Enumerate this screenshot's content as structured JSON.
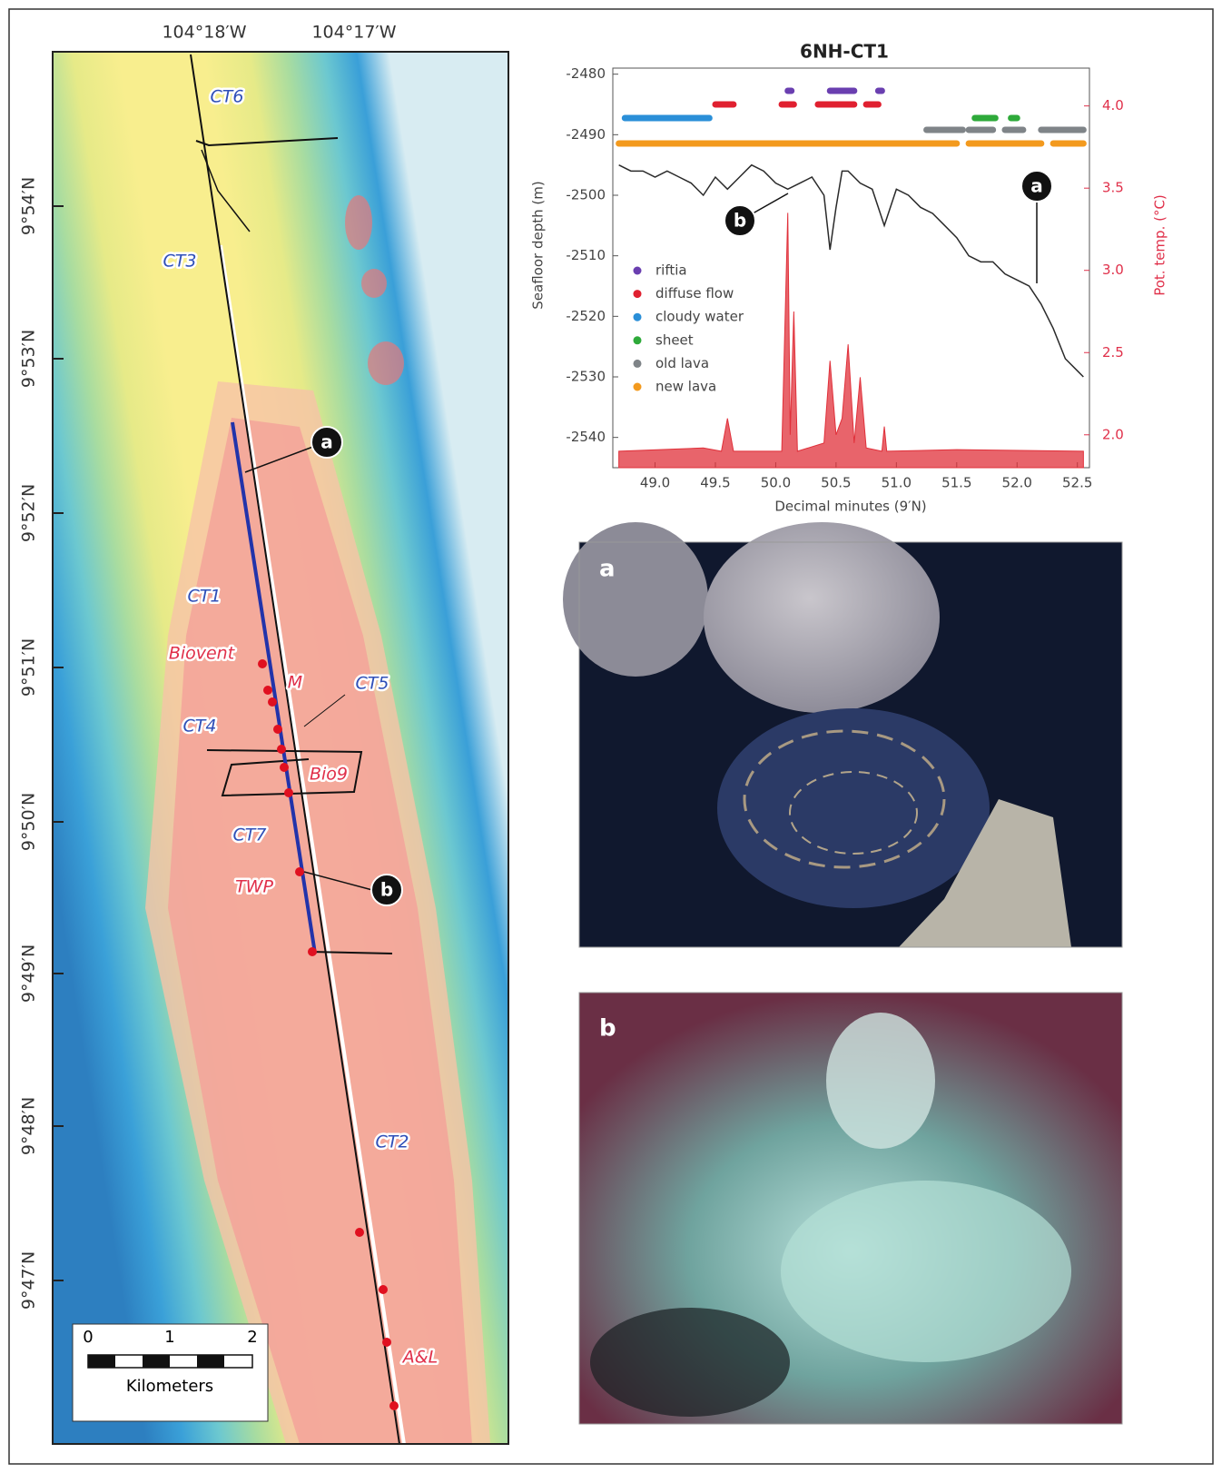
{
  "map": {
    "lon_labels": [
      "104°18′W",
      "104°17′W"
    ],
    "lat_labels": [
      "9°54′N",
      "9°53′N",
      "9°52′N",
      "9°51′N",
      "9°50′N",
      "9°49′N",
      "9°48′N",
      "9°47′N"
    ],
    "site_labels": [
      "CT6",
      "CT3",
      "CT1",
      "Biovent",
      "M",
      "CT5",
      "CT4",
      "Bio9",
      "CT7",
      "TWP",
      "CT2",
      "A&L"
    ],
    "callouts": [
      "a",
      "b"
    ],
    "scale": {
      "ticks": [
        "0",
        "1",
        "2"
      ],
      "unit": "Kilometers"
    }
  },
  "chart_data": {
    "type": "line",
    "title": "6NH-CT1",
    "x_label": "Decimal minutes (9′N)",
    "y_label": "Seafloor depth (m)",
    "y2_label": "Pot. temp. (°C)",
    "xlim": [
      48.65,
      52.6
    ],
    "xticks": [
      {
        "value": 49,
        "label": "49.0"
      },
      {
        "value": 49.5,
        "label": "49.5"
      },
      {
        "value": 50,
        "label": "50.0"
      },
      {
        "value": 50.5,
        "label": "50.5"
      },
      {
        "value": 51,
        "label": "51.0"
      },
      {
        "value": 51.5,
        "label": "51.5"
      },
      {
        "value": 52,
        "label": "52.0"
      },
      {
        "value": 52.5,
        "label": "52.5"
      }
    ],
    "ylim": [
      -2545,
      -2479
    ],
    "yticks": [
      -2480,
      -2490,
      -2500,
      -2510,
      -2520,
      -2530,
      -2540
    ],
    "y2lim": [
      1.8,
      4.23
    ],
    "y2ticks": [
      {
        "value": 2,
        "label": "2.0"
      },
      2.5,
      {
        "value": 3,
        "label": "3.0"
      },
      3.5,
      {
        "value": 4,
        "label": "4.0"
      }
    ],
    "series": [
      {
        "color": "#2a2a2a",
        "x": [
          48.7,
          48.8,
          48.9,
          49.0,
          49.1,
          49.2,
          49.3,
          49.4,
          49.5,
          49.6,
          49.7,
          49.8,
          49.9,
          50.0,
          50.1,
          50.2,
          50.3,
          50.4,
          50.45,
          50.5,
          50.55,
          50.6,
          50.7,
          50.8,
          50.9,
          51.0,
          51.1,
          51.2,
          51.3,
          51.4,
          51.5,
          51.6,
          51.7,
          51.8,
          51.9,
          52.0,
          52.1,
          52.2,
          52.3,
          52.4,
          52.5,
          52.55
        ],
        "values": [
          -2495,
          -2496,
          -2496,
          -2497,
          -2496,
          -2497,
          -2498,
          -2500,
          -2497,
          -2499,
          -2497,
          -2495,
          -2496,
          -2498,
          -2499,
          -2498,
          -2497,
          -2500,
          -2509,
          -2502,
          -2496,
          -2496,
          -2498,
          -2499,
          -2505,
          -2499,
          -2500,
          -2502,
          -2503,
          -2505,
          -2507,
          -2510,
          -2511,
          -2511,
          -2513,
          -2514,
          -2515,
          -2518,
          -2522,
          -2527,
          -2529,
          -2530
        ]
      },
      {
        "axis": "y2",
        "color": "#e0303a",
        "x": [
          48.7,
          49.4,
          49.55,
          49.6,
          49.65,
          50.05,
          50.1,
          50.12,
          50.15,
          50.18,
          50.4,
          50.45,
          50.5,
          50.55,
          50.6,
          50.65,
          50.7,
          50.75,
          50.88,
          50.9,
          50.92,
          51.5,
          52.55
        ],
        "values": [
          1.9,
          1.92,
          1.9,
          2.1,
          1.9,
          1.9,
          3.35,
          2.0,
          2.75,
          1.9,
          1.95,
          2.45,
          2.0,
          2.1,
          2.55,
          1.95,
          2.35,
          1.92,
          1.9,
          2.05,
          1.9,
          1.91,
          1.9
        ]
      }
    ],
    "habitats": [
      {
        "name": "riftia",
        "color": "#6a3fb0",
        "segments": [
          [
            50.1,
            50.13
          ],
          [
            50.45,
            50.65
          ],
          [
            50.85,
            50.88
          ]
        ]
      },
      {
        "name": "diffuse flow",
        "color": "#e02030",
        "segments": [
          [
            49.5,
            49.65
          ],
          [
            50.05,
            50.15
          ],
          [
            50.35,
            50.65
          ],
          [
            50.75,
            50.85
          ]
        ]
      },
      {
        "name": "cloudy water",
        "color": "#2a8fd8",
        "segments": [
          [
            48.75,
            49.45
          ]
        ]
      },
      {
        "name": "sheet",
        "color": "#2eaa3a",
        "segments": [
          [
            51.65,
            51.82
          ],
          [
            51.95,
            52.0
          ]
        ]
      },
      {
        "name": "old lava",
        "color": "#7f8488",
        "segments": [
          [
            51.25,
            51.55
          ],
          [
            51.6,
            51.8
          ],
          [
            51.9,
            52.05
          ],
          [
            52.2,
            52.55
          ]
        ]
      },
      {
        "name": "new lava",
        "color": "#f39a1e",
        "segments": [
          [
            48.7,
            51.5
          ],
          [
            51.6,
            52.2
          ],
          [
            52.3,
            52.55
          ]
        ]
      }
    ],
    "annotations": [
      "b",
      "a"
    ]
  },
  "photos": [
    {
      "label": "a"
    },
    {
      "label": "b"
    }
  ]
}
